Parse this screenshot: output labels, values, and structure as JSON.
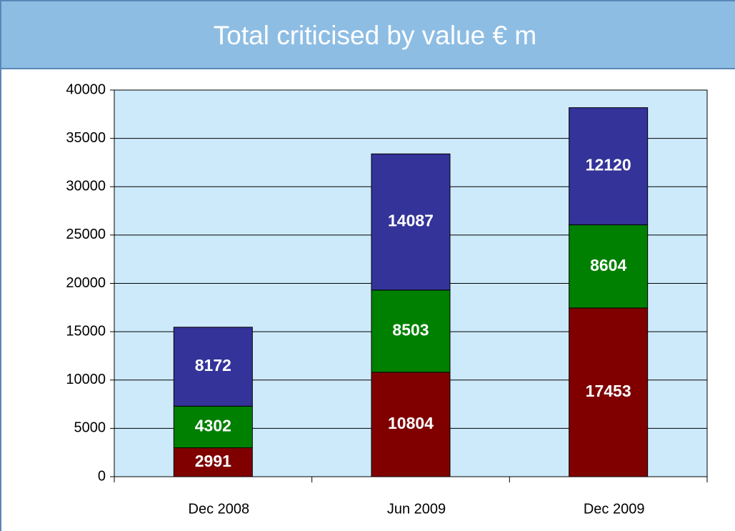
{
  "chart_data": {
    "type": "stacked_bar",
    "title": "Total criticised by value € m",
    "categories": [
      "Dec 2008",
      "Jun 2009",
      "Dec 2009"
    ],
    "series": [
      {
        "color": "#800000",
        "values": [
          2991,
          10804,
          17453
        ]
      },
      {
        "color": "#008000",
        "values": [
          4302,
          8503,
          8604
        ]
      },
      {
        "color": "#333399",
        "values": [
          8172,
          14087,
          12120
        ]
      }
    ],
    "ylim": [
      0,
      40000
    ],
    "yticks": [
      0,
      5000,
      10000,
      15000,
      20000,
      25000,
      30000,
      35000,
      40000
    ],
    "grid": true
  }
}
